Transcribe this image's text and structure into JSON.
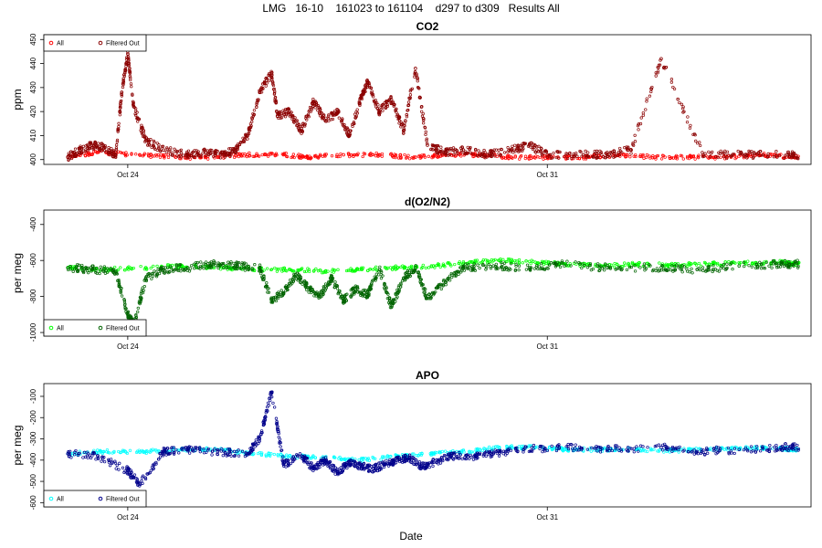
{
  "title": "LMG   16-10    161023 to 161104    d297 to d309   Results All",
  "xlabel": "Date",
  "chart_data": [
    {
      "type": "scatter",
      "title": "CO2",
      "ylabel": "ppm",
      "ylim": [
        398,
        452
      ],
      "yticks": [
        400,
        410,
        420,
        430,
        440,
        450
      ],
      "x_ticks": [
        {
          "day": 24,
          "label": "Oct 24"
        },
        {
          "day": 31,
          "label": "Oct 31"
        }
      ],
      "xlim": [
        22.6,
        35.4
      ],
      "legend": {
        "position": "top-left",
        "entries": [
          "All",
          "Filtered Out"
        ]
      },
      "series": [
        {
          "name": "All",
          "color": "#ff0000",
          "x": [
            23.0,
            23.5,
            24.2,
            24.8,
            25.5,
            26.0,
            26.6,
            27.0,
            27.6,
            28.2,
            28.8,
            29.3,
            29.8,
            30.4,
            31.0,
            31.6,
            32.2,
            32.8,
            33.4,
            34.0,
            34.6,
            35.1
          ],
          "y": [
            401,
            403,
            402,
            401,
            401,
            402,
            402,
            401,
            402,
            402,
            401,
            402,
            402,
            401,
            401,
            401,
            402,
            401,
            401,
            401,
            402,
            401
          ]
        },
        {
          "name": "Filtered Out",
          "color": "#8b0000",
          "x": [
            23.0,
            23.2,
            23.4,
            23.6,
            23.8,
            23.9,
            24.0,
            24.1,
            24.3,
            24.6,
            25.0,
            25.3,
            25.6,
            25.8,
            26.0,
            26.2,
            26.4,
            26.5,
            26.7,
            26.9,
            27.1,
            27.3,
            27.5,
            27.7,
            27.9,
            28.0,
            28.2,
            28.4,
            28.6,
            28.8,
            29.0,
            29.3,
            29.6,
            30.0,
            30.4,
            30.7,
            31.0,
            31.6,
            32.0,
            32.4,
            32.9,
            33.6,
            34.3,
            35.0
          ],
          "y": [
            401,
            404,
            406,
            405,
            402,
            428,
            444,
            422,
            408,
            404,
            402,
            403,
            402,
            404,
            410,
            428,
            436,
            418,
            420,
            412,
            424,
            416,
            420,
            410,
            426,
            432,
            420,
            425,
            412,
            438,
            406,
            403,
            404,
            402,
            404,
            406,
            402,
            402,
            402,
            404,
            442,
            402,
            402,
            402
          ]
        }
      ]
    },
    {
      "type": "scatter",
      "title": "d(O2/N2)",
      "ylabel": "per meg",
      "ylim": [
        -1020,
        -320
      ],
      "yticks": [
        -1000,
        -800,
        -600,
        -400
      ],
      "x_ticks": [
        {
          "day": 24,
          "label": "Oct 24"
        },
        {
          "day": 31,
          "label": "Oct 31"
        }
      ],
      "xlim": [
        22.6,
        35.4
      ],
      "legend": {
        "position": "bottom-left",
        "entries": [
          "All",
          "Filtered Out"
        ]
      },
      "series": [
        {
          "name": "All",
          "color": "#00ff00",
          "x": [
            23.0,
            23.6,
            24.3,
            24.9,
            25.6,
            26.1,
            26.7,
            27.3,
            27.9,
            28.5,
            29.1,
            29.7,
            30.2,
            30.8,
            31.3,
            31.9,
            32.5,
            33.1,
            33.7,
            34.3,
            34.9,
            35.1
          ],
          "y": [
            -640,
            -650,
            -640,
            -630,
            -640,
            -650,
            -650,
            -660,
            -650,
            -640,
            -630,
            -610,
            -600,
            -610,
            -620,
            -630,
            -620,
            -625,
            -620,
            -615,
            -610,
            -620
          ]
        },
        {
          "name": "Filtered Out",
          "color": "#006400",
          "x": [
            23.0,
            23.4,
            23.8,
            24.0,
            24.1,
            24.3,
            24.6,
            25.0,
            25.4,
            25.8,
            26.2,
            26.4,
            26.6,
            26.8,
            27.0,
            27.2,
            27.4,
            27.6,
            27.8,
            28.0,
            28.2,
            28.4,
            28.6,
            28.8,
            29.0,
            29.3,
            29.6,
            30.1,
            30.7,
            31.2,
            32.0,
            32.9,
            33.5,
            34.2,
            34.9
          ],
          "y": [
            -640,
            -650,
            -660,
            -900,
            -960,
            -700,
            -650,
            -640,
            -620,
            -630,
            -640,
            -820,
            -780,
            -680,
            -750,
            -800,
            -700,
            -820,
            -760,
            -790,
            -650,
            -860,
            -700,
            -640,
            -810,
            -720,
            -640,
            -630,
            -640,
            -620,
            -640,
            -640,
            -650,
            -630,
            -620
          ]
        }
      ]
    },
    {
      "type": "scatter",
      "title": "APO",
      "ylabel": "per meg",
      "ylim": [
        -620,
        -40
      ],
      "yticks": [
        -600,
        -500,
        -400,
        -300,
        -200,
        -100
      ],
      "x_ticks": [
        {
          "day": 24,
          "label": "Oct 24"
        },
        {
          "day": 31,
          "label": "Oct 31"
        }
      ],
      "xlim": [
        22.6,
        35.4
      ],
      "legend": {
        "position": "bottom-left",
        "entries": [
          "All",
          "Filtered Out"
        ]
      },
      "series": [
        {
          "name": "All",
          "color": "#00ffff",
          "x": [
            23.0,
            23.6,
            24.3,
            24.9,
            25.5,
            26.1,
            26.7,
            27.3,
            27.9,
            28.5,
            29.1,
            29.7,
            30.2,
            30.8,
            31.3,
            31.9,
            32.5,
            33.1,
            33.7,
            34.3,
            34.9,
            35.1
          ],
          "y": [
            -370,
            -360,
            -360,
            -350,
            -350,
            -370,
            -380,
            -390,
            -400,
            -380,
            -370,
            -360,
            -340,
            -340,
            -350,
            -350,
            -350,
            -355,
            -350,
            -345,
            -345,
            -350
          ]
        },
        {
          "name": "Filtered Out",
          "color": "#00008b",
          "x": [
            23.0,
            23.5,
            24.0,
            24.2,
            24.6,
            25.0,
            25.5,
            26.0,
            26.2,
            26.4,
            26.6,
            26.9,
            27.1,
            27.3,
            27.5,
            27.7,
            27.9,
            28.1,
            28.3,
            28.5,
            28.7,
            28.9,
            29.1,
            29.4,
            29.8,
            30.1,
            30.6,
            31.2,
            32.0,
            32.9,
            33.5,
            34.2,
            34.9
          ],
          "y": [
            -370,
            -380,
            -450,
            -510,
            -360,
            -350,
            -360,
            -370,
            -300,
            -80,
            -420,
            -380,
            -440,
            -400,
            -460,
            -410,
            -430,
            -440,
            -420,
            -400,
            -390,
            -430,
            -410,
            -380,
            -380,
            -370,
            -350,
            -340,
            -350,
            -340,
            -360,
            -350,
            -340
          ]
        }
      ]
    }
  ]
}
